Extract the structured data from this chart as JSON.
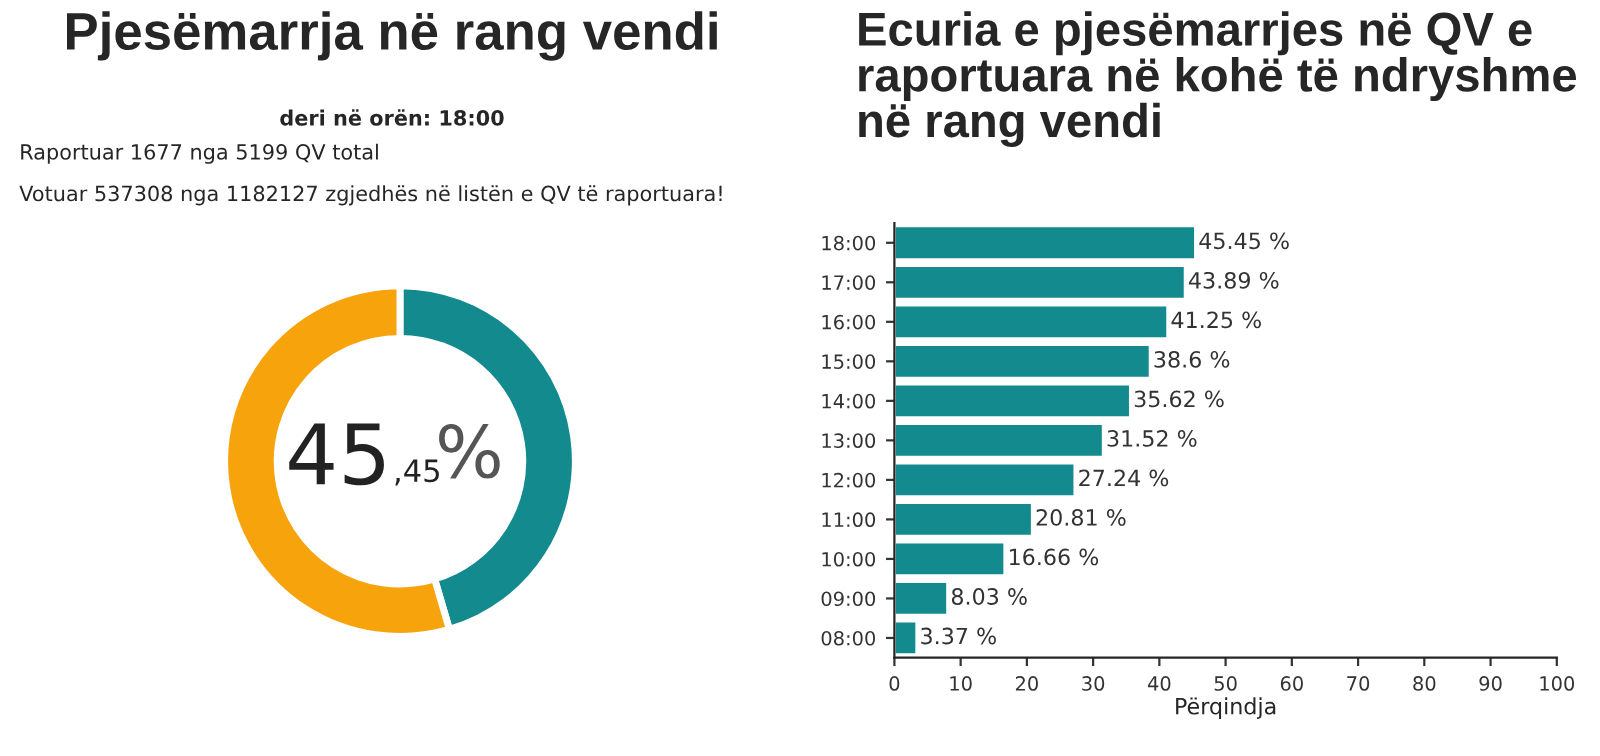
{
  "chart_data": [
    {
      "type": "donut",
      "title": "Pjesëmarrja në rang vendi",
      "subtitle": "deri në orën: 18:00",
      "categories": [
        null,
        null
      ],
      "values": [
        45.45,
        54.55
      ],
      "colors": [
        "#138a8e",
        "#f7a30c"
      ],
      "annotations": [
        "Raportuar 1677 nga 5199 QV total",
        "Votuar 537308 nga 1182127 zgjedhës në listën e QV të raportuara!",
        "45,45 %"
      ]
    },
    {
      "type": "bar",
      "orientation": "horizontal",
      "title": "Ecuria e pjesëmarrjes në QV e raportuara në kohë të ndryshme në rang vendi",
      "xlabel": "Përqindja",
      "categories": [
        "18:00",
        "17:00",
        "16:00",
        "15:00",
        "14:00",
        "13:00",
        "12:00",
        "11:00",
        "10:00",
        "09:00",
        "08:00"
      ],
      "values": [
        45.45,
        43.89,
        41.25,
        38.6,
        35.62,
        31.52,
        27.24,
        20.81,
        16.66,
        8.03,
        3.37
      ],
      "value_labels": [
        "45.45 %",
        "43.89 %",
        "41.25 %",
        "38.6 %",
        "35.62 %",
        "31.52 %",
        "27.24 %",
        "20.81 %",
        "16.66 %",
        "8.03 %",
        "3.37 %"
      ],
      "color": "#138a8e",
      "xlim": [
        0,
        100
      ],
      "xticks": [
        0,
        10,
        20,
        30,
        40,
        50,
        60,
        70,
        80,
        90,
        100
      ],
      "grid": false,
      "legend": false
    }
  ]
}
